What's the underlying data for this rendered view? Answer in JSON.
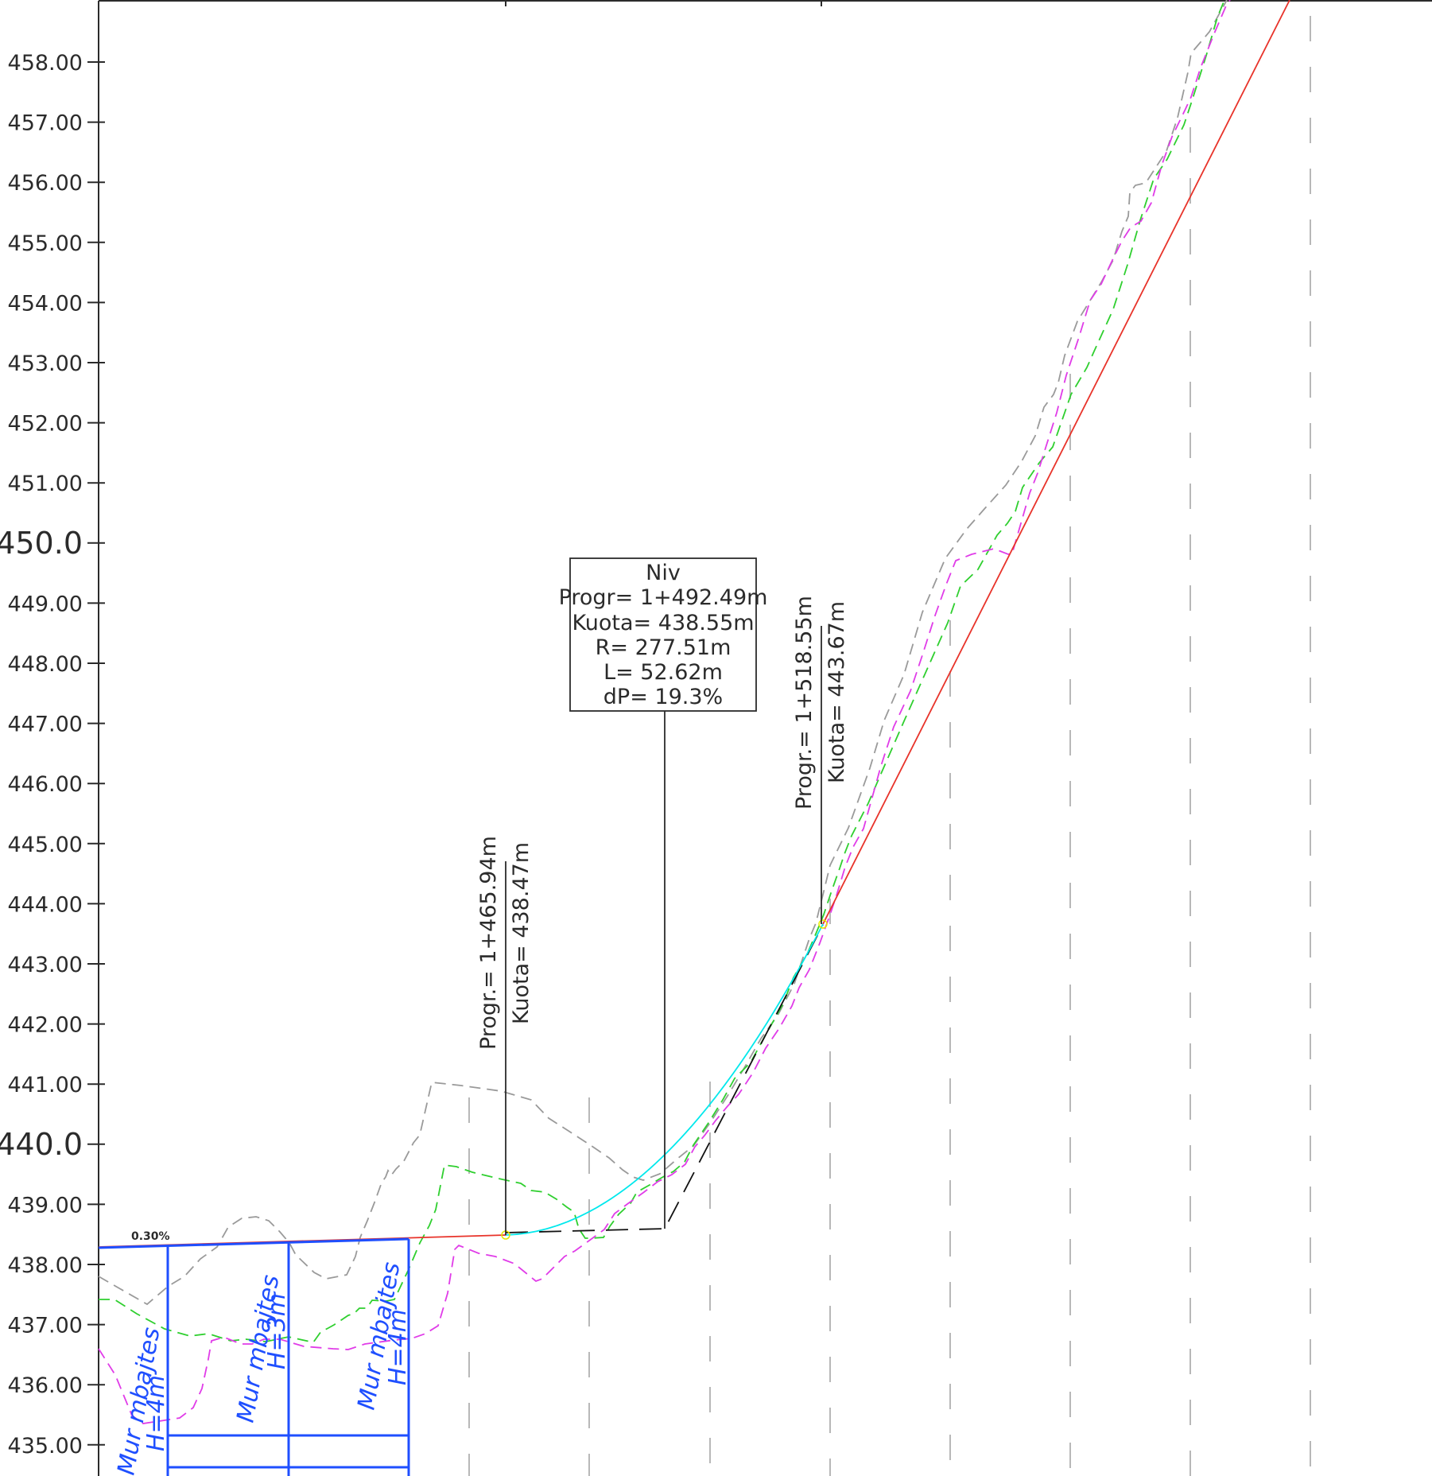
{
  "colors": {
    "axis": "#2b2b2b",
    "grid": "#b8b8b8",
    "grade_line": "#e8332a",
    "vertical_curve": "#00e8ec",
    "wall": "#1f4fff",
    "ground_gray": "#9a9a9a",
    "ground_green": "#2fcf2f",
    "ground_magenta": "#e03ce8",
    "tangent": "#111111",
    "text": "#2b2b2b"
  },
  "axis": {
    "labels": [
      "458.00",
      "457.00",
      "456.00",
      "455.00",
      "454.00",
      "453.00",
      "452.00",
      "451.00",
      "450.0",
      "449.00",
      "448.00",
      "447.00",
      "446.00",
      "445.00",
      "444.00",
      "443.00",
      "442.00",
      "441.00",
      "440.0",
      "439.00",
      "438.00",
      "437.00",
      "436.00",
      "435.00"
    ]
  },
  "grade": {
    "slope_label": "0.30%"
  },
  "vertical_curve": {
    "box_lines": [
      "Niv",
      "Progr= 1+492.49m",
      "Kuota= 438.55m",
      "R= 277.51m",
      "L= 52.62m",
      "dP= 19.3%"
    ],
    "start_labels": [
      "Progr.= 1+465.94m",
      "Kuota= 438.47m"
    ],
    "end_labels": [
      "Progr.= 1+518.55m",
      "Kuota= 443.67m"
    ]
  },
  "walls": [
    {
      "label": "Mur mbajtes",
      "height": "H=4m"
    },
    {
      "label": "Mur mbajtes",
      "height": "H=3m"
    },
    {
      "label": "Mur mbajtes",
      "height": "H=4m"
    }
  ]
}
